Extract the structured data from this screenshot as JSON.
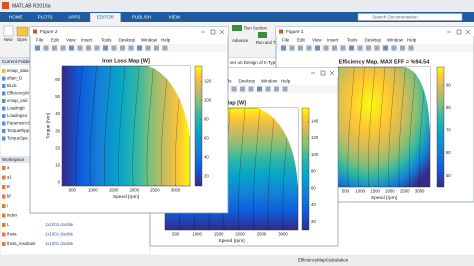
{
  "app_title": "MATLAB R2016a",
  "tabs": [
    "HOME",
    "PLOTS",
    "APPS",
    "EDITOR",
    "PUBLISH",
    "VIEW"
  ],
  "search": "Search Documentation",
  "toolstrip": {
    "file_buttons": [
      "New",
      "Open"
    ],
    "run_section": "Run Section",
    "advance": "Advance",
    "run_time": "Run and Time"
  },
  "editor_tab": "ver on Design of II-Type",
  "current_folder": {
    "title": "Current Folder",
    "files": [
      "emap_data",
      "aftan_D",
      "BLdc",
      "EfficiencyM",
      "emap_calc",
      "Loadingb",
      "Loadingsa",
      "ParametricS",
      "TorqueRipp",
      "TorqueSpe"
    ]
  },
  "workspace": {
    "title": "Workspace",
    "items": [
      {
        "name": "a"
      },
      {
        "name": "a1"
      },
      {
        "name": "B"
      },
      {
        "name": "bf"
      },
      {
        "name": "i"
      },
      {
        "name": "index"
      },
      {
        "name": "L",
        "value": "1x1001 double"
      },
      {
        "name": "theta",
        "value": "1x1001 double"
      },
      {
        "name": "theta_resultant",
        "value": "1x1001 double"
      }
    ]
  },
  "menu": [
    "File",
    "Edit",
    "View",
    "Insert",
    "Tools",
    "Desktop",
    "Window",
    "Help"
  ],
  "figures": [
    {
      "window_title": "Figure 2",
      "title": "Iron Loss Map [W]",
      "xlabel": "Speed [rpm]",
      "ylabel": "Torque [Nm]",
      "xticks": [
        500,
        1000,
        1500,
        2000,
        2500,
        3000
      ],
      "yticks": [
        0,
        10,
        20,
        30,
        40,
        50,
        60
      ],
      "colorbar_ticks": [
        20,
        40,
        60,
        80,
        100,
        120
      ]
    },
    {
      "window_title": "Figure 1",
      "title": "Efficiency Map, MAX EFF = %94.54",
      "xlabel": "Speed [rpm]",
      "xticks": [
        500,
        1000,
        1500,
        2000,
        2500,
        3000
      ],
      "colorbar_ticks": [
        50,
        60,
        70,
        80,
        90
      ]
    },
    {
      "title": "ss Map [W]",
      "xlabel": "Speed [rpm]",
      "xticks": [
        500,
        1000,
        1500,
        2000,
        2500,
        3000
      ],
      "colorbar_ticks": [
        20,
        40,
        60,
        80,
        100,
        120,
        140
      ]
    }
  ],
  "status": "EfficiencyMapCalculation"
}
